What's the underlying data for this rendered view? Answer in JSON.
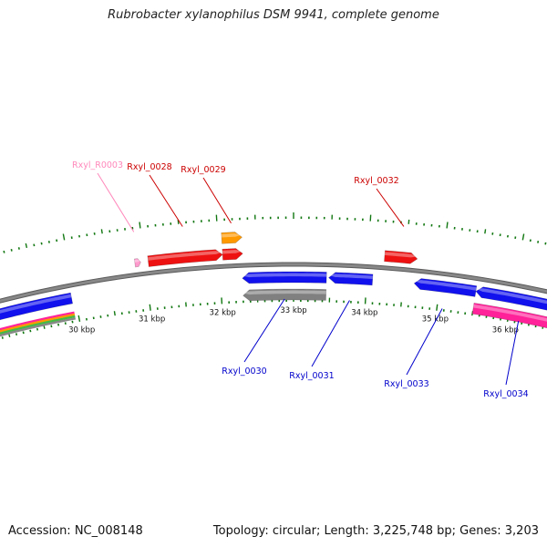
{
  "title": "Rubrobacter xylanophilus DSM 9941, complete genome",
  "footer": {
    "accession": "Accession: NC_008148",
    "stats": "Topology: circular; Length: 3,225,748 bp; Genes: 3,203"
  },
  "colors": {
    "forward_gene": "#ee1111",
    "reverse_gene": "#1111ee",
    "rrna": "#ff9900",
    "trna": "#ff99cc",
    "pseudo": "#808080",
    "other": "#ff2299",
    "backbone": "#888888",
    "tick": "#117711",
    "label_forward": "#cc0000",
    "label_reverse": "#0000cc",
    "label_trna": "#ff88bb"
  },
  "scale": {
    "unit": "kbp",
    "labels": [
      "30 kbp",
      "31 kbp",
      "32 kbp",
      "33 kbp",
      "34 kbp",
      "35 kbp",
      "36 kbp"
    ]
  },
  "features": [
    {
      "label": "",
      "start": 28.8,
      "end": 29.95,
      "strand": "-",
      "track": 1,
      "type": "gene"
    },
    {
      "label": "",
      "start": 28.8,
      "end": 29.95,
      "strand": "-",
      "track": 2,
      "type": "multi"
    },
    {
      "label": "Rxyl_R0003",
      "start": 30.87,
      "end": 30.95,
      "strand": "+",
      "track": 1,
      "type": "trna"
    },
    {
      "label": "Rxyl_0028",
      "start": 31.05,
      "end": 32.05,
      "strand": "+",
      "track": 1,
      "type": "gene"
    },
    {
      "label": "Rxyl_0029",
      "start": 32.05,
      "end": 32.32,
      "strand": "+",
      "track": 1,
      "type": "gene"
    },
    {
      "label": "",
      "start": 32.05,
      "end": 32.32,
      "strand": "+",
      "track": 2,
      "type": "rrna"
    },
    {
      "label": "Rxyl_0030",
      "start": 32.3,
      "end": 33.45,
      "strand": "-",
      "track": 1,
      "type": "gene"
    },
    {
      "label": "",
      "start": 32.3,
      "end": 33.45,
      "strand": "-",
      "track": 2,
      "type": "pseudo"
    },
    {
      "label": "Rxyl_0031",
      "start": 33.48,
      "end": 34.08,
      "strand": "-",
      "track": 1,
      "type": "gene"
    },
    {
      "label": "Rxyl_0032",
      "start": 34.22,
      "end": 34.66,
      "strand": "+",
      "track": 1,
      "type": "gene"
    },
    {
      "label": "Rxyl_0033",
      "start": 34.65,
      "end": 35.5,
      "strand": "-",
      "track": 1,
      "type": "gene"
    },
    {
      "label": "Rxyl_0034",
      "start": 35.5,
      "end": 36.8,
      "strand": "-",
      "track": 1,
      "type": "gene"
    },
    {
      "label": "",
      "start": 35.5,
      "end": 36.8,
      "strand": "-",
      "track": 2,
      "type": "other"
    }
  ]
}
